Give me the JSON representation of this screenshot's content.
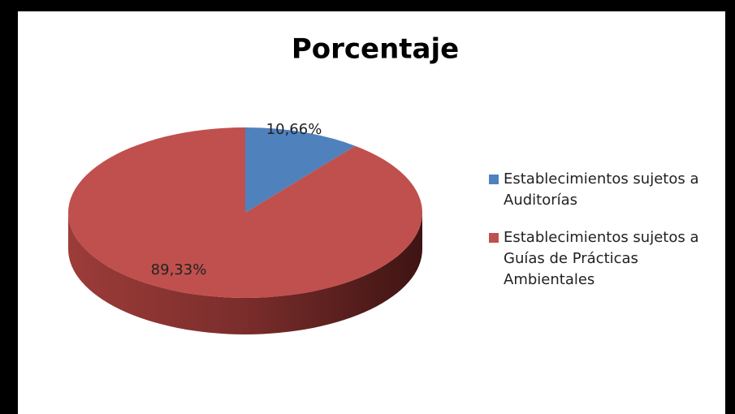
{
  "chart_data": {
    "type": "pie",
    "title": "Porcentaje",
    "categories": [
      "Establecimientos sujetos a Auditorías",
      "Establecimientos sujetos a Guías de Prácticas Ambientales"
    ],
    "values": [
      10.66,
      89.33
    ],
    "value_labels": [
      "10,66%",
      "89,33%"
    ],
    "colors": [
      "#4f81bd",
      "#c0504d"
    ],
    "legend": "right"
  }
}
